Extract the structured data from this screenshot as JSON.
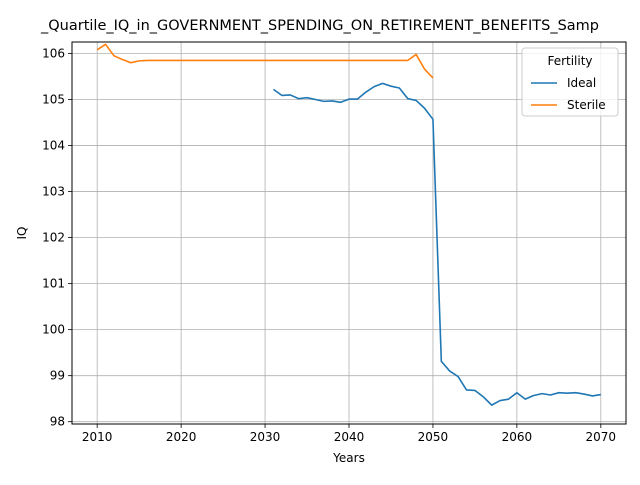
{
  "chart_data": {
    "type": "line",
    "title": "_Quartile_IQ_in_GOVERNMENT_SPENDING_ON_RETIREMENT_BENEFITS_Samp",
    "xlabel": "Years",
    "ylabel": "IQ",
    "xlim": [
      2007,
      2073
    ],
    "ylim": [
      97.95,
      106.25
    ],
    "xticks": [
      2010,
      2020,
      2030,
      2040,
      2050,
      2060,
      2070
    ],
    "yticks": [
      98,
      99,
      100,
      101,
      102,
      103,
      104,
      105,
      106
    ],
    "grid": true,
    "legend": {
      "title": "Fertility",
      "placement": "top-right"
    },
    "series": [
      {
        "name": "Ideal",
        "color": "#1f77b4",
        "x": [
          2031,
          2032,
          2033,
          2034,
          2035,
          2036,
          2037,
          2038,
          2039,
          2040,
          2041,
          2042,
          2043,
          2044,
          2045,
          2046,
          2047,
          2048,
          2049,
          2050,
          2051,
          2052,
          2053,
          2054,
          2055,
          2056,
          2057,
          2058,
          2059,
          2060,
          2061,
          2062,
          2063,
          2064,
          2065,
          2066,
          2067,
          2068,
          2069,
          2070
        ],
        "y": [
          105.22,
          105.09,
          105.1,
          105.02,
          105.04,
          105.0,
          104.96,
          104.97,
          104.94,
          105.01,
          105.01,
          105.16,
          105.28,
          105.35,
          105.29,
          105.25,
          105.02,
          104.98,
          104.81,
          104.57,
          99.31,
          99.1,
          98.98,
          98.69,
          98.68,
          98.54,
          98.36,
          98.46,
          98.49,
          98.63,
          98.49,
          98.57,
          98.61,
          98.58,
          98.63,
          98.62,
          98.63,
          98.6,
          98.56,
          98.59
        ]
      },
      {
        "name": "Sterile",
        "color": "#ff7f0e",
        "x": [
          2010,
          2011,
          2012,
          2013,
          2014,
          2015,
          2016,
          2017,
          2018,
          2019,
          2020,
          2021,
          2022,
          2023,
          2024,
          2025,
          2026,
          2027,
          2028,
          2029,
          2030,
          2031,
          2032,
          2033,
          2034,
          2035,
          2036,
          2037,
          2038,
          2039,
          2040,
          2041,
          2042,
          2043,
          2044,
          2045,
          2046,
          2047,
          2048,
          2049,
          2050
        ],
        "y": [
          106.08,
          106.2,
          105.95,
          105.87,
          105.8,
          105.84,
          105.85,
          105.85,
          105.85,
          105.85,
          105.85,
          105.85,
          105.85,
          105.85,
          105.85,
          105.85,
          105.85,
          105.85,
          105.85,
          105.85,
          105.85,
          105.85,
          105.85,
          105.85,
          105.85,
          105.85,
          105.85,
          105.85,
          105.85,
          105.85,
          105.85,
          105.85,
          105.85,
          105.85,
          105.85,
          105.85,
          105.85,
          105.85,
          105.98,
          105.66,
          105.47
        ]
      }
    ]
  }
}
